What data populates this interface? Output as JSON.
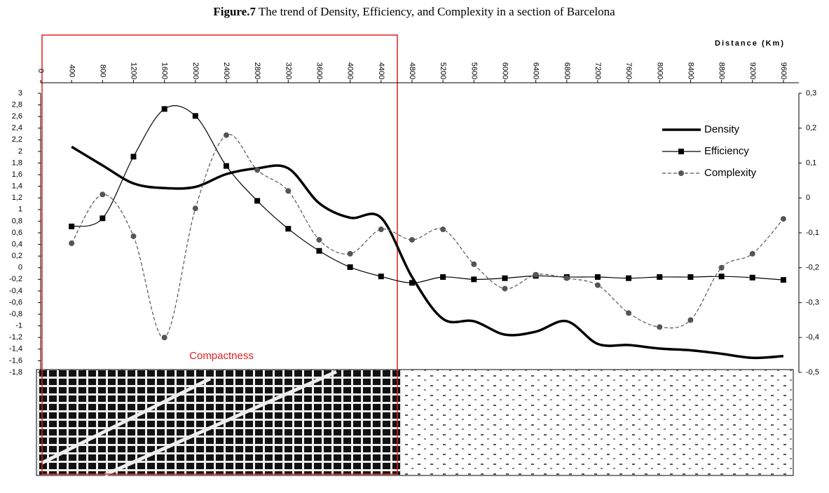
{
  "chart_data": {
    "type": "line",
    "title_label": "Figure.7",
    "title": "The trend of Density, Efficiency, and Complexity in a section of Barcelona",
    "x_label": "Distance (Km)",
    "annotation": "Compactness",
    "x": [
      400,
      800,
      1200,
      1600,
      2000,
      2400,
      2800,
      3200,
      3600,
      4000,
      4400,
      4800,
      5200,
      5600,
      6000,
      6400,
      6800,
      7200,
      7600,
      8000,
      8400,
      8800,
      9200,
      9600
    ],
    "xlim": [
      0,
      9800
    ],
    "xticks": [
      0,
      400,
      800,
      1200,
      1600,
      2000,
      2400,
      2800,
      3200,
      3600,
      4000,
      4400,
      4800,
      5200,
      5600,
      6000,
      6400,
      6800,
      7200,
      7600,
      8000,
      8400,
      8800,
      9200,
      9600
    ],
    "ylim": [
      -1.8,
      3
    ],
    "yticks": [
      {
        "value": -1.8,
        "label": "-1,8"
      },
      {
        "value": -1.6,
        "label": "-1,6"
      },
      {
        "value": -1.4,
        "label": "-1,4"
      },
      {
        "value": -1.2,
        "label": "-1,2"
      },
      -1,
      {
        "value": -0.8,
        "label": "-0,8"
      },
      {
        "value": -0.6,
        "label": "-0,6"
      },
      {
        "value": -0.4,
        "label": "-0,4"
      },
      {
        "value": -0.2,
        "label": "-0,2"
      },
      0,
      {
        "value": 0.2,
        "label": "0,2"
      },
      {
        "value": 0.4,
        "label": "0,4"
      },
      {
        "value": 0.6,
        "label": "0,6"
      },
      {
        "value": 0.8,
        "label": "0,8"
      },
      1,
      {
        "value": 1.2,
        "label": "1,2"
      },
      {
        "value": 1.4,
        "label": "1,4"
      },
      {
        "value": 1.6,
        "label": "1,6"
      },
      {
        "value": 1.8,
        "label": "1,8"
      },
      2,
      {
        "value": 2.2,
        "label": "2,2"
      },
      {
        "value": 2.4,
        "label": "2,4"
      },
      {
        "value": 2.6,
        "label": "2,6"
      },
      {
        "value": 2.8,
        "label": "2,8"
      },
      3
    ],
    "y2lim": [
      -0.5,
      0.3
    ],
    "y2ticks": [
      {
        "value": -0.5,
        "label": "-0,5"
      },
      {
        "value": -0.4,
        "label": "-0,4"
      },
      {
        "value": -0.3,
        "label": "-0,3"
      },
      {
        "value": -0.2,
        "label": "-0,2"
      },
      {
        "value": -0.1,
        "label": "-0,1"
      },
      0,
      {
        "value": 0.1,
        "label": "0,1"
      },
      {
        "value": 0.2,
        "label": "0,2"
      },
      {
        "value": 0.3,
        "label": "0,3"
      }
    ],
    "series": [
      {
        "name": "Density",
        "color": "#000000",
        "style": "thick",
        "values": [
          2.08,
          1.76,
          1.45,
          1.37,
          1.39,
          1.61,
          1.71,
          1.71,
          1.11,
          0.86,
          0.86,
          -0.16,
          -0.88,
          -0.92,
          -1.15,
          -1.1,
          -0.92,
          -1.31,
          -1.33,
          -1.39,
          -1.42,
          -1.48,
          -1.55,
          -1.52
        ]
      },
      {
        "name": "Efficiency",
        "color": "#000000",
        "style": "square",
        "values": [
          0.71,
          0.85,
          1.91,
          2.73,
          2.61,
          1.75,
          1.15,
          0.67,
          0.29,
          0.01,
          -0.15,
          -0.26,
          -0.16,
          -0.2,
          -0.18,
          -0.14,
          -0.16,
          -0.16,
          -0.18,
          -0.16,
          -0.16,
          -0.15,
          -0.17,
          -0.21
        ]
      },
      {
        "name": "Complexity",
        "color": "#555555",
        "style": "dashed-circle",
        "axis": "y2",
        "values": [
          -0.13,
          0.01,
          -0.11,
          -0.4,
          -0.03,
          0.18,
          0.08,
          0.02,
          -0.12,
          -0.16,
          -0.09,
          -0.12,
          -0.09,
          -0.19,
          -0.26,
          -0.22,
          -0.23,
          -0.25,
          -0.33,
          -0.37,
          -0.35,
          -0.2,
          -0.16,
          -0.06
        ]
      }
    ]
  }
}
